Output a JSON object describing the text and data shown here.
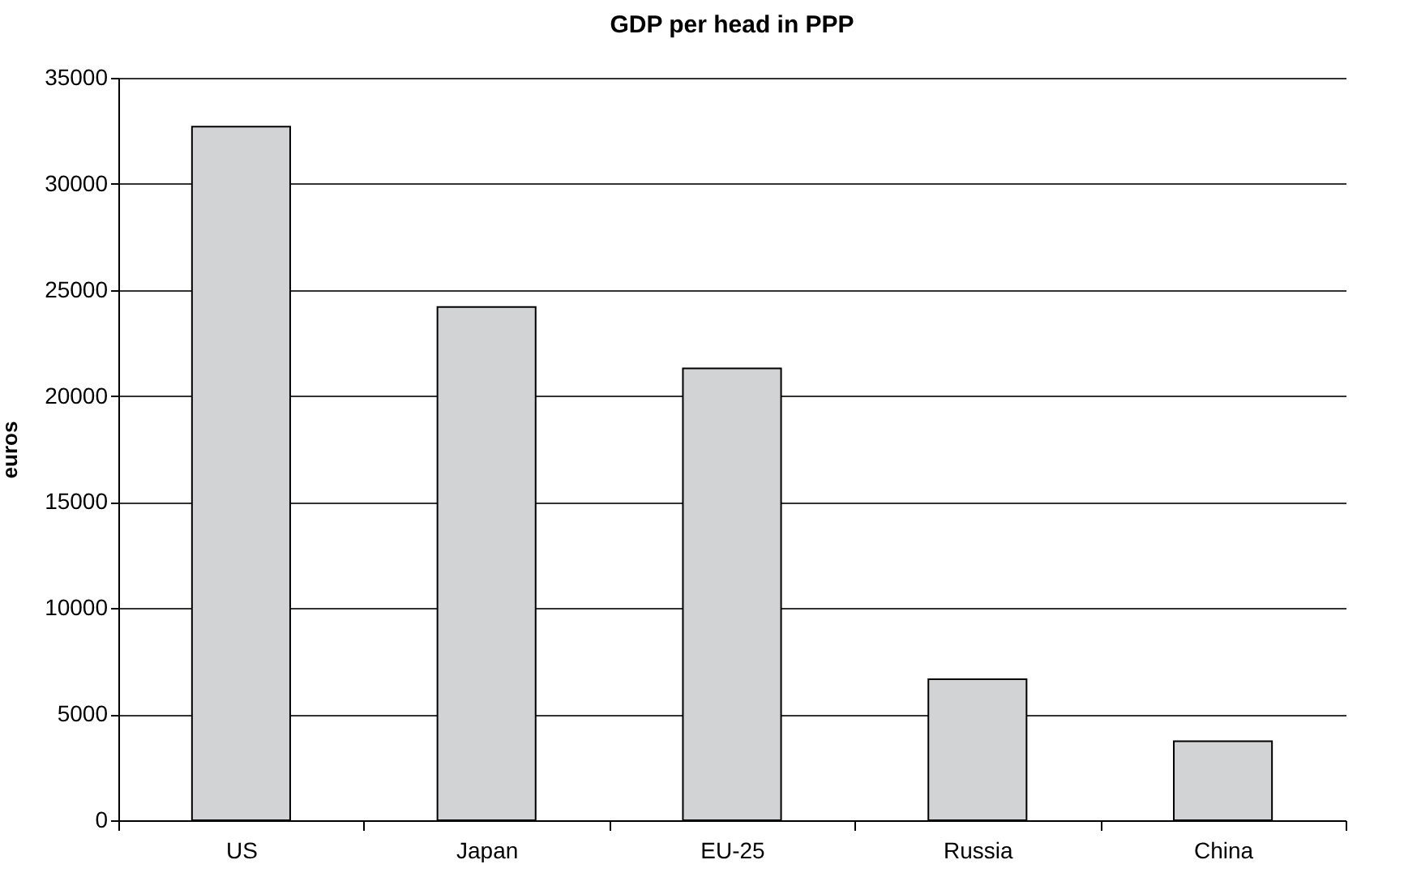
{
  "chart_data": {
    "type": "bar",
    "title": "GDP per head in PPP",
    "ylabel": "euros",
    "categories": [
      "US",
      "Japan",
      "EU-25",
      "Russia",
      "China"
    ],
    "values": [
      32700,
      24200,
      21300,
      6650,
      3730
    ],
    "color": "#d2d3d5",
    "ylim": [
      0,
      35000
    ],
    "yticks": [
      0,
      5000,
      10000,
      15000,
      20000,
      25000,
      30000,
      35000
    ],
    "grid": "y"
  }
}
